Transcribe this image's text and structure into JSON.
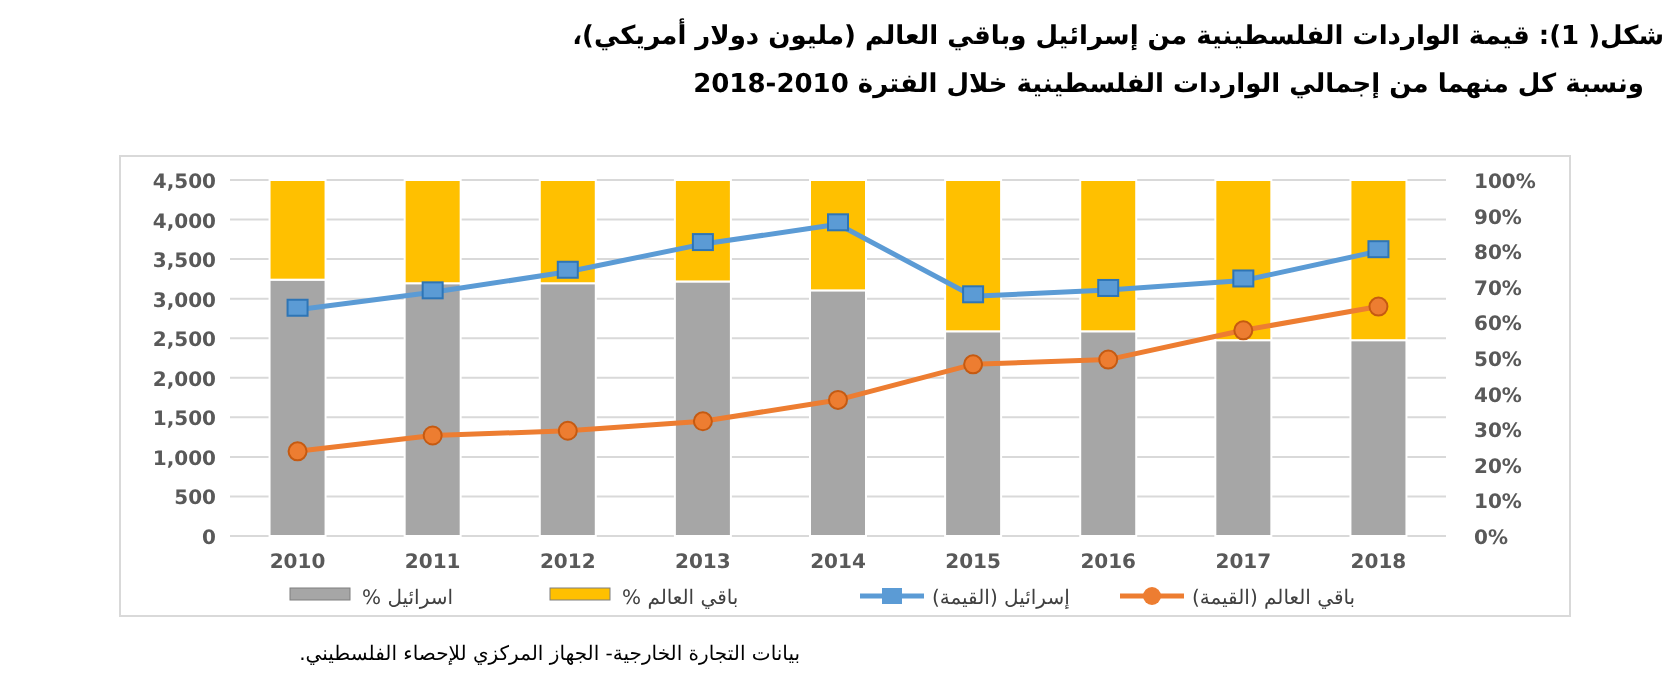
{
  "chart_data": {
    "type": "bar",
    "stacked": true,
    "title": "شكل( 1): قيمة الواردات الفلسطينية من إسرائيل وباقي العالم (مليون دولار أمريكي)،",
    "subtitle": "ونسبة كل منهما من إجمالي الواردات الفلسطينية خلال الفترة 2010-2018",
    "categories": [
      "2010",
      "2011",
      "2012",
      "2013",
      "2014",
      "2015",
      "2016",
      "2017",
      "2018"
    ],
    "series": [
      {
        "name": "% اسرائيل",
        "axis": "y2",
        "color": "#a6a6a6",
        "values": [
          72,
          71,
          71,
          71.5,
          69,
          57.5,
          57.5,
          55,
          55
        ]
      },
      {
        "name": "% باقي العالم",
        "axis": "y2",
        "color": "#ffc000",
        "values": [
          28,
          29,
          29,
          28.5,
          31,
          42.5,
          42.5,
          45,
          45
        ]
      },
      {
        "name": "إسرائيل (القيمة)",
        "type": "line",
        "marker": "square",
        "color": "#5b9bd5",
        "values": [
          2860,
          3080,
          3340,
          3690,
          3940,
          3030,
          3110,
          3230,
          3600
        ]
      },
      {
        "name": "باقي العالم (القيمة)",
        "type": "line",
        "marker": "circle",
        "color": "#ed7d31",
        "values": [
          1070,
          1270,
          1330,
          1450,
          1720,
          2170,
          2230,
          2600,
          2900
        ]
      }
    ],
    "ylim": [
      0,
      4500
    ],
    "yticks": [
      {
        "value": 0,
        "label": "0"
      },
      {
        "value": 500,
        "label": "500"
      },
      {
        "value": 1000,
        "label": "1,000"
      },
      {
        "value": 1500,
        "label": "1,500"
      },
      {
        "value": 2000,
        "label": "2,000"
      },
      {
        "value": 2500,
        "label": "2,500"
      },
      {
        "value": 3000,
        "label": "3,000"
      },
      {
        "value": 3500,
        "label": "3,500"
      },
      {
        "value": 4000,
        "label": "4,000"
      },
      {
        "value": 4500,
        "label": "4,500"
      }
    ],
    "y2lim": [
      0,
      100
    ],
    "y2ticks": [
      {
        "value": 0,
        "label": "0%"
      },
      {
        "value": 10,
        "label": "10%"
      },
      {
        "value": 20,
        "label": "20%"
      },
      {
        "value": 30,
        "label": "30%"
      },
      {
        "value": 40,
        "label": "40%"
      },
      {
        "value": 50,
        "label": "50%"
      },
      {
        "value": 60,
        "label": "60%"
      },
      {
        "value": 70,
        "label": "70%"
      },
      {
        "value": 80,
        "label": "80%"
      },
      {
        "value": 90,
        "label": "90%"
      },
      {
        "value": 100,
        "label": "100%"
      }
    ],
    "grid": "y",
    "legend": "bottom",
    "annotations": [
      "بيانات التجارة الخارجية- الجهاز المركزي للإحصاء الفلسطيني."
    ]
  }
}
